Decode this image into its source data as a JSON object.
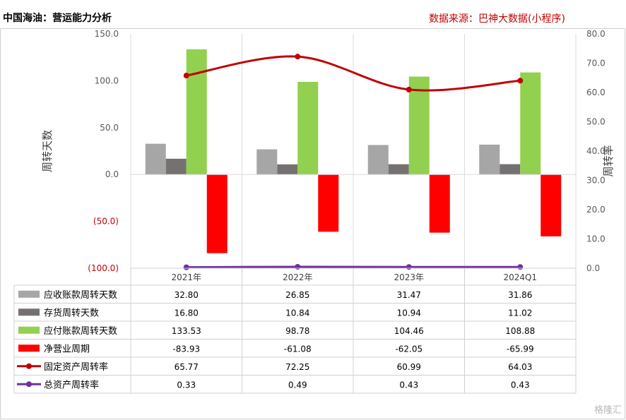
{
  "header": {
    "title": "中国海油：营运能力分析",
    "source": "数据来源：巴神大数据(小程序)"
  },
  "watermark": "格隆汇",
  "chart_data": {
    "type": "bar",
    "categories": [
      "2021年",
      "2022年",
      "2023年",
      "2024Q1"
    ],
    "ylabel_left": "周转天数",
    "ylabel_right": "周转率",
    "ylim_left": [
      -100,
      150
    ],
    "ylim_right": [
      0,
      80
    ],
    "left_ticks": [
      150,
      100,
      50,
      0,
      -50,
      -100
    ],
    "left_tick_labels": [
      "150.0",
      "100.0",
      "50.0",
      "0.0",
      "(50.0)",
      "(100.0)"
    ],
    "right_ticks": [
      80,
      70,
      60,
      50,
      40,
      30,
      20,
      10,
      0
    ],
    "right_tick_labels": [
      "80.0",
      "70.0",
      "60.0",
      "50.0",
      "40.0",
      "30.0",
      "20.0",
      "10.0",
      "0.0"
    ],
    "series": [
      {
        "name": "应收账款周转天数",
        "type": "bar",
        "axis": "left",
        "color": "#a6a6a6",
        "values": [
          32.8,
          26.85,
          31.47,
          31.86
        ],
        "labels": [
          "32.80",
          "26.85",
          "31.47",
          "31.86"
        ]
      },
      {
        "name": "存货周转天数",
        "type": "bar",
        "axis": "left",
        "color": "#767171",
        "values": [
          16.8,
          10.84,
          10.94,
          11.02
        ],
        "labels": [
          "16.80",
          "10.84",
          "10.94",
          "11.02"
        ]
      },
      {
        "name": "应付账款周转天数",
        "type": "bar",
        "axis": "left",
        "color": "#92d050",
        "values": [
          133.53,
          98.78,
          104.46,
          108.88
        ],
        "labels": [
          "133.53",
          "98.78",
          "104.46",
          "108.88"
        ]
      },
      {
        "name": "净营业周期",
        "type": "bar",
        "axis": "left",
        "color": "#ff0000",
        "values": [
          -83.93,
          -61.08,
          -62.05,
          -65.99
        ],
        "labels": [
          "-83.93",
          "-61.08",
          "-62.05",
          "-65.99"
        ]
      },
      {
        "name": "固定资产周转率",
        "type": "line",
        "axis": "right",
        "color": "#c00000",
        "values": [
          65.77,
          72.25,
          60.99,
          64.03
        ],
        "labels": [
          "65.77",
          "72.25",
          "60.99",
          "64.03"
        ]
      },
      {
        "name": "总资产周转率",
        "type": "line",
        "axis": "right",
        "color": "#7030a0",
        "values": [
          0.33,
          0.49,
          0.43,
          0.43
        ],
        "labels": [
          "0.33",
          "0.49",
          "0.43",
          "0.43"
        ]
      }
    ],
    "grid": "vertical",
    "legend": "data-table"
  }
}
